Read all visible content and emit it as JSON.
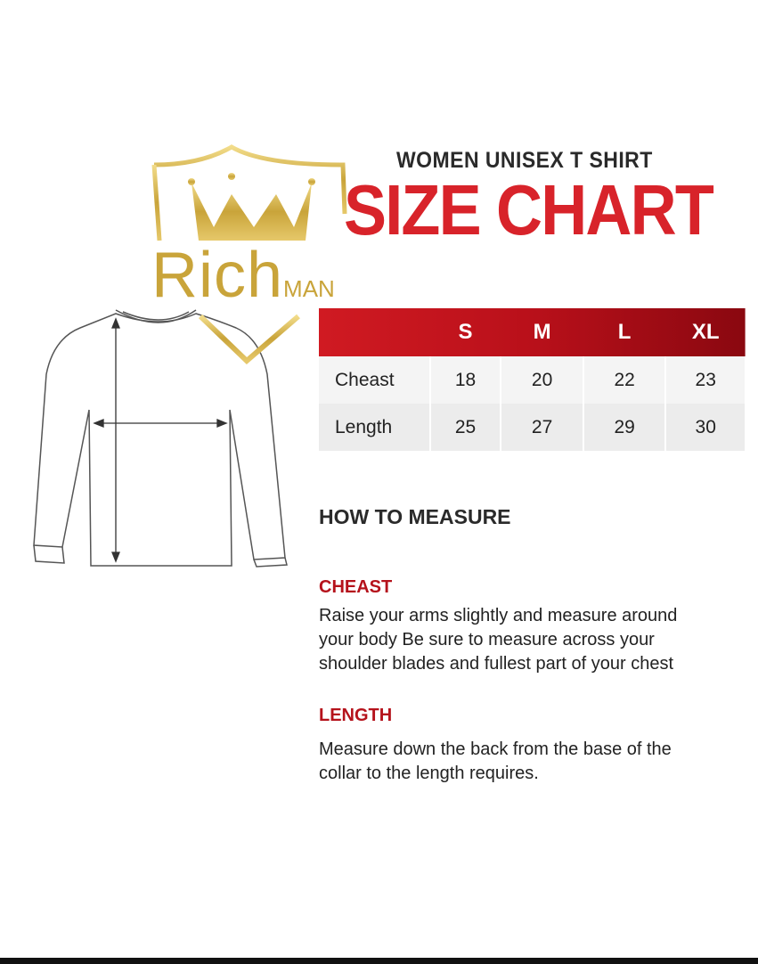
{
  "logo": {
    "text_main": "Rich",
    "text_small": "MAN",
    "icon": "crown-shield-icon",
    "color": "#c9a43a"
  },
  "header": {
    "subtitle": "WOMEN UNISEX T SHIRT",
    "title": "SIZE CHART",
    "title_color": "#d8232a"
  },
  "table": {
    "columns": [
      "",
      "S",
      "M",
      "L",
      "XL"
    ],
    "rows": [
      {
        "label": "Cheast",
        "values": [
          "18",
          "20",
          "22",
          "23"
        ]
      },
      {
        "label": "Length",
        "values": [
          "25",
          "27",
          "29",
          "30"
        ]
      }
    ]
  },
  "howto": {
    "heading": "HOW TO MEASURE",
    "sections": [
      {
        "title": "CHEAST",
        "lines": [
          "Raise your arms slightly and measure around",
          "your body Be sure to measure across your",
          "shoulder blades and fullest part of your chest"
        ]
      },
      {
        "title": "LENGTH",
        "lines": [
          "Measure down the back from the base of the",
          "collar to the length requires."
        ]
      }
    ]
  },
  "illustration": {
    "icon": "long-sleeve-shirt-outline-icon"
  }
}
